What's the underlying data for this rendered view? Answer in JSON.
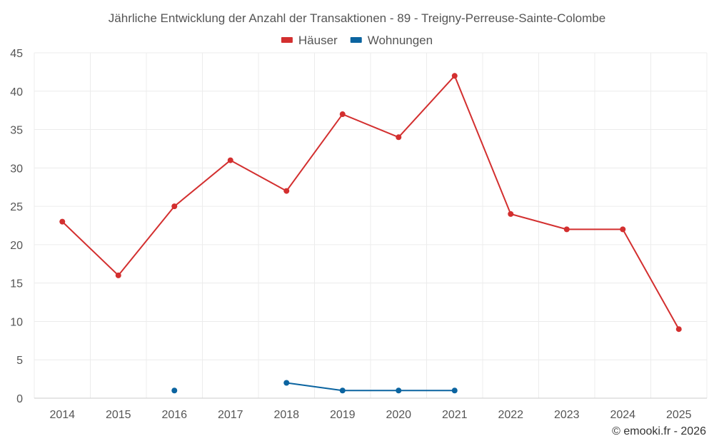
{
  "chart_data": {
    "type": "line",
    "title": "Jährliche Entwicklung der Anzahl der Transaktionen - 89 - Treigny-Perreuse-Sainte-Colombe",
    "xlabel": "",
    "ylabel": "",
    "categories": [
      "2014",
      "2015",
      "2016",
      "2017",
      "2018",
      "2019",
      "2020",
      "2021",
      "2022",
      "2023",
      "2024",
      "2025"
    ],
    "ylim": [
      0,
      45
    ],
    "y_ticks": [
      0,
      5,
      10,
      15,
      20,
      25,
      30,
      35,
      40,
      45
    ],
    "y_tick_labels": [
      "0",
      "5",
      "10",
      "15",
      "20",
      "25",
      "30",
      "35",
      "40",
      "45"
    ],
    "grid": true,
    "legend_position": "top-center",
    "series": [
      {
        "name": "Häuser",
        "color": "#d32f2f",
        "values": [
          23,
          16,
          25,
          31,
          27,
          37,
          34,
          42,
          24,
          22,
          22,
          9
        ]
      },
      {
        "name": "Wohnungen",
        "color": "#0b64a0",
        "values": [
          null,
          null,
          1,
          null,
          2,
          1,
          1,
          1,
          null,
          null,
          null,
          null
        ]
      }
    ]
  },
  "credit": "© emooki.fr - 2026"
}
